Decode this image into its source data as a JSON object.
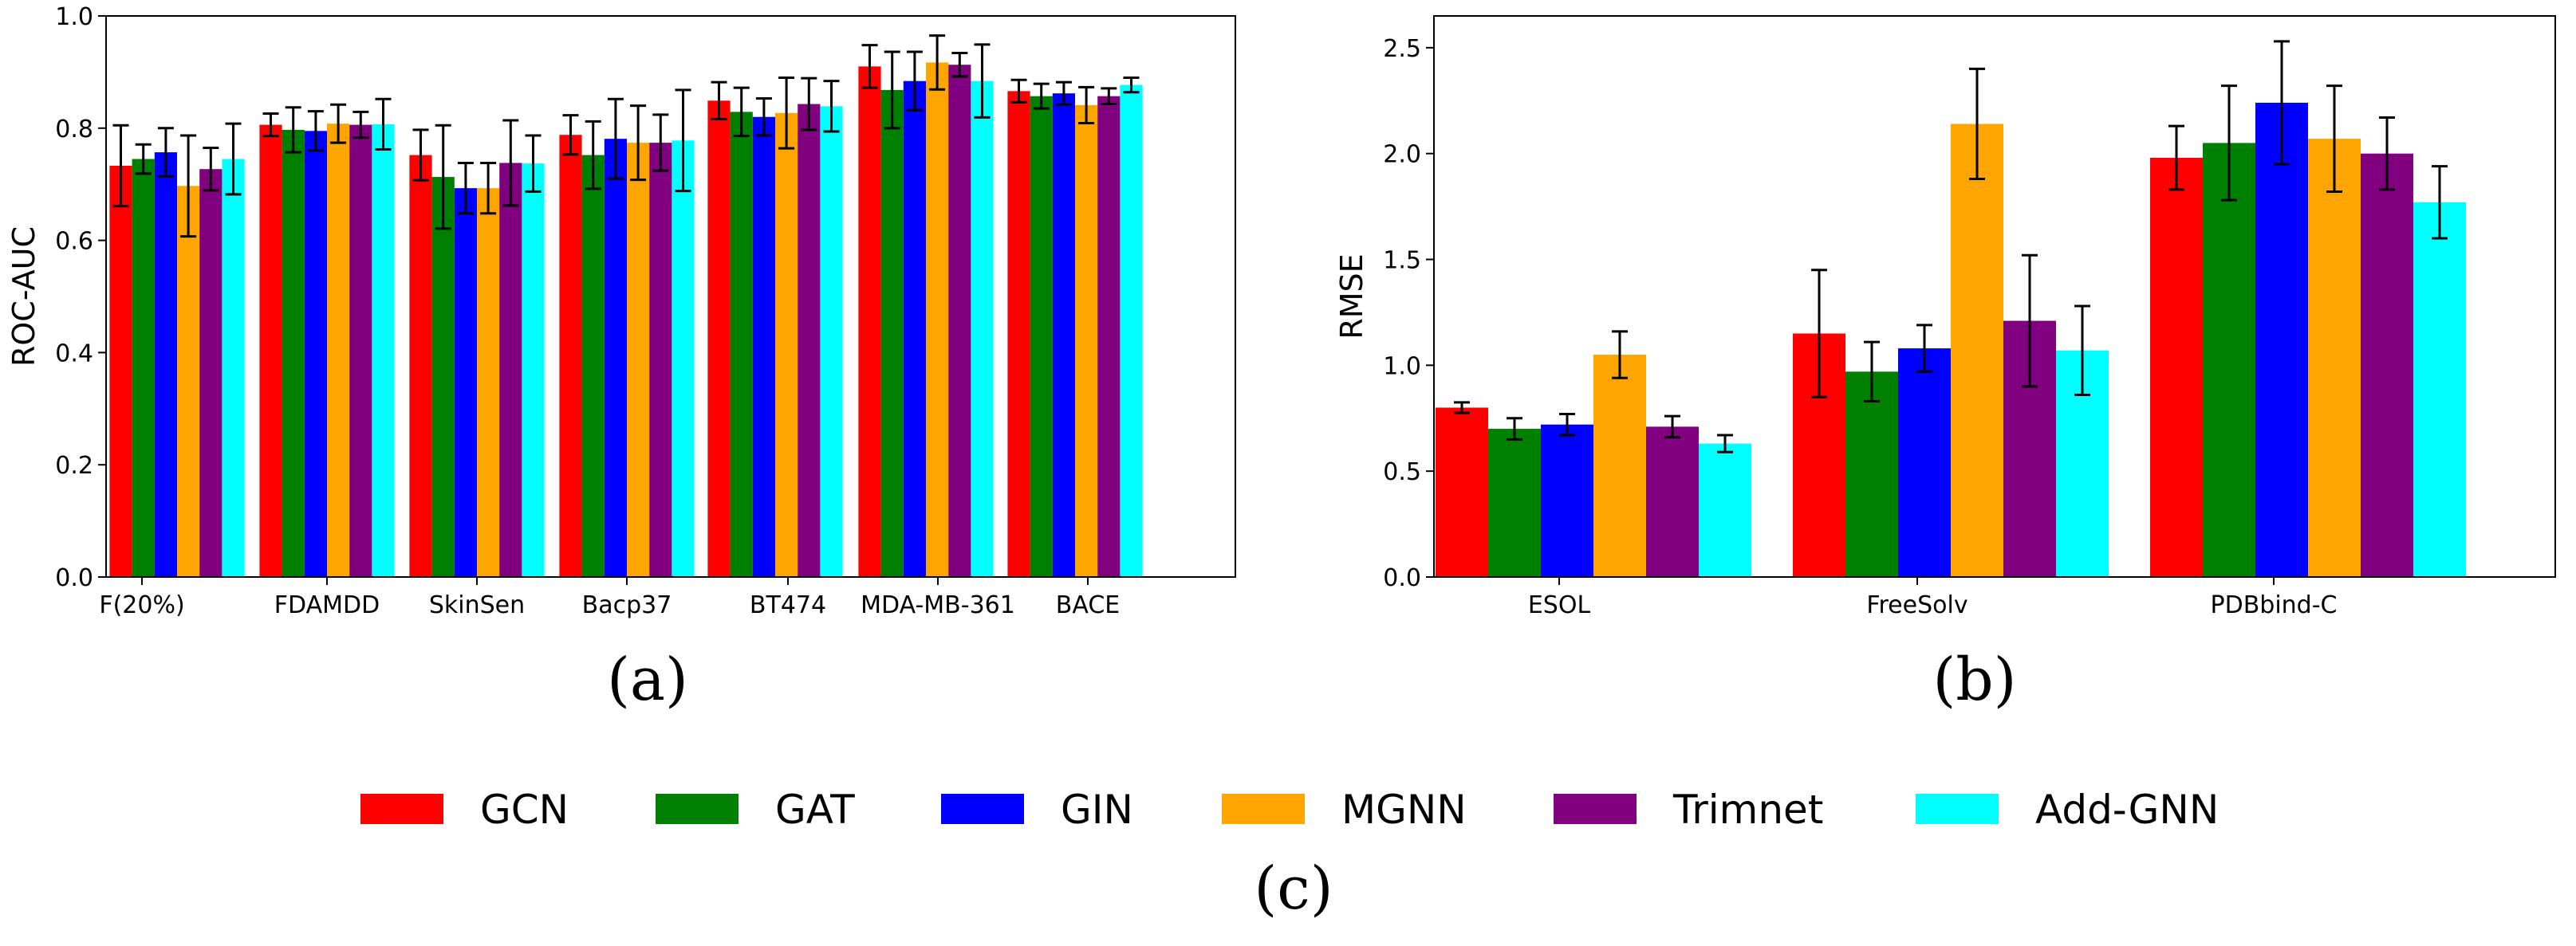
{
  "colors": {
    "GCN": "#ff0000",
    "GAT": "#008000",
    "GIN": "#0000ff",
    "MGNN": "#ffa500",
    "Trimnet": "#800080",
    "Add-GNN": "#00ffff"
  },
  "legend": {
    "items": [
      "GCN",
      "GAT",
      "GIN",
      "MGNN",
      "Trimnet",
      "Add-GNN"
    ],
    "caption": "(c)"
  },
  "chart_data": [
    {
      "panel": "(a)",
      "type": "bar",
      "title": "",
      "xlabel": "",
      "ylabel": "ROC-AUC",
      "ylim": [
        0,
        1.0
      ],
      "yticks": [
        "0.0",
        "0.2",
        "0.4",
        "0.6",
        "0.8",
        "1.0"
      ],
      "categories": [
        "F(20%)",
        "FDAMDD",
        "SkinSen",
        "Bacp37",
        "BT474",
        "MDA-MB-361",
        "BACE"
      ],
      "series": [
        {
          "name": "GCN",
          "values": [
            0.733,
            0.806,
            0.752,
            0.788,
            0.849,
            0.91,
            0.866
          ],
          "errors": [
            0.072,
            0.02,
            0.045,
            0.035,
            0.033,
            0.038,
            0.02
          ]
        },
        {
          "name": "GAT",
          "values": [
            0.745,
            0.797,
            0.713,
            0.752,
            0.829,
            0.868,
            0.857
          ],
          "errors": [
            0.026,
            0.04,
            0.092,
            0.06,
            0.043,
            0.068,
            0.022
          ]
        },
        {
          "name": "GIN",
          "values": [
            0.757,
            0.795,
            0.693,
            0.781,
            0.82,
            0.884,
            0.862
          ],
          "errors": [
            0.043,
            0.035,
            0.045,
            0.071,
            0.033,
            0.052,
            0.02
          ]
        },
        {
          "name": "MGNN",
          "values": [
            0.697,
            0.808,
            0.693,
            0.774,
            0.827,
            0.917,
            0.841
          ],
          "errors": [
            0.09,
            0.034,
            0.045,
            0.066,
            0.063,
            0.048,
            0.032
          ]
        },
        {
          "name": "Trimnet",
          "values": [
            0.727,
            0.806,
            0.738,
            0.774,
            0.843,
            0.913,
            0.857
          ],
          "errors": [
            0.038,
            0.023,
            0.076,
            0.05,
            0.046,
            0.021,
            0.014
          ]
        },
        {
          "name": "Add-GNN",
          "values": [
            0.745,
            0.807,
            0.737,
            0.778,
            0.839,
            0.884,
            0.877
          ],
          "errors": [
            0.063,
            0.045,
            0.05,
            0.09,
            0.045,
            0.065,
            0.013
          ]
        }
      ]
    },
    {
      "panel": "(b)",
      "type": "bar",
      "title": "",
      "xlabel": "",
      "ylabel": "RMSE",
      "ylim": [
        0,
        2.65
      ],
      "yticks": [
        "0.0",
        "0.5",
        "1.0",
        "1.5",
        "2.0",
        "2.5"
      ],
      "categories": [
        "ESOL",
        "FreeSolv",
        "PDBbind-C"
      ],
      "series": [
        {
          "name": "GCN",
          "values": [
            0.8,
            1.15,
            1.98
          ],
          "errors": [
            0.025,
            0.3,
            0.15
          ]
        },
        {
          "name": "GAT",
          "values": [
            0.7,
            0.97,
            2.05
          ],
          "errors": [
            0.05,
            0.14,
            0.27
          ]
        },
        {
          "name": "GIN",
          "values": [
            0.72,
            1.08,
            2.24
          ],
          "errors": [
            0.05,
            0.11,
            0.29
          ]
        },
        {
          "name": "MGNN",
          "values": [
            1.05,
            2.14,
            2.07
          ],
          "errors": [
            0.11,
            0.26,
            0.25
          ]
        },
        {
          "name": "Trimnet",
          "values": [
            0.71,
            1.21,
            2.0
          ],
          "errors": [
            0.05,
            0.31,
            0.17
          ]
        },
        {
          "name": "Add-GNN",
          "values": [
            0.63,
            1.07,
            1.77
          ],
          "errors": [
            0.04,
            0.21,
            0.17
          ]
        }
      ]
    }
  ]
}
